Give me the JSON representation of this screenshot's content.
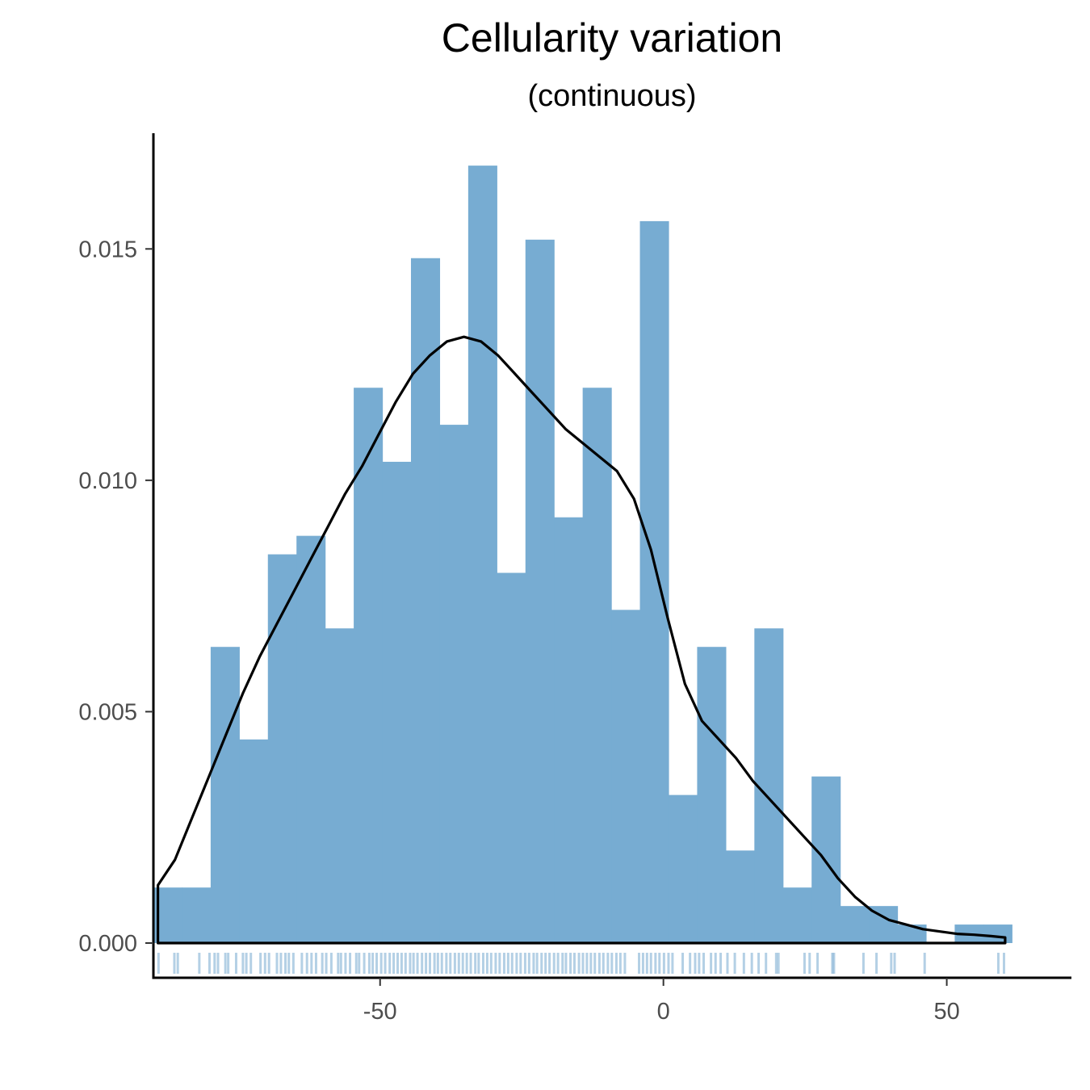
{
  "chart_data": {
    "type": "histogram",
    "title": "Cellularity variation",
    "subtitle": "(continuous)",
    "xlabel": "",
    "ylabel": "",
    "xlim": [
      -90,
      72
    ],
    "ylim": [
      -0.00075,
      0.0175
    ],
    "x_ticks": [
      -50,
      0,
      50
    ],
    "x_tick_labels": [
      "-50",
      "0",
      "50"
    ],
    "y_ticks": [
      0,
      0.005,
      0.01,
      0.015
    ],
    "y_tick_labels": [
      "0.000",
      "0.005",
      "0.010",
      "0.015"
    ],
    "grid": false,
    "bar_color": "#77acd2",
    "bin_width": 5.05,
    "bins": [
      {
        "x0": -90.0,
        "x1": -84.95,
        "density": 0.0012
      },
      {
        "x0": -84.95,
        "x1": -79.9,
        "density": 0.0012
      },
      {
        "x0": -79.9,
        "x1": -74.85,
        "density": 0.0064
      },
      {
        "x0": -74.85,
        "x1": -69.8,
        "density": 0.0044
      },
      {
        "x0": -69.8,
        "x1": -64.75,
        "density": 0.0084
      },
      {
        "x0": -64.75,
        "x1": -59.7,
        "density": 0.0088
      },
      {
        "x0": -59.7,
        "x1": -54.65,
        "density": 0.0068
      },
      {
        "x0": -54.65,
        "x1": -49.6,
        "density": 0.012
      },
      {
        "x0": -49.6,
        "x1": -44.55,
        "density": 0.0104
      },
      {
        "x0": -44.55,
        "x1": -39.5,
        "density": 0.0148
      },
      {
        "x0": -39.5,
        "x1": -34.45,
        "density": 0.0112
      },
      {
        "x0": -34.45,
        "x1": -29.4,
        "density": 0.0168
      },
      {
        "x0": -29.4,
        "x1": -24.35,
        "density": 0.008
      },
      {
        "x0": -24.35,
        "x1": -19.3,
        "density": 0.0152
      },
      {
        "x0": -19.3,
        "x1": -14.25,
        "density": 0.0092
      },
      {
        "x0": -14.25,
        "x1": -9.2,
        "density": 0.012
      },
      {
        "x0": -9.2,
        "x1": -4.15,
        "density": 0.0072
      },
      {
        "x0": -4.15,
        "x1": 0.9,
        "density": 0.0156
      },
      {
        "x0": 0.9,
        "x1": 5.95,
        "density": 0.0032
      },
      {
        "x0": 5.95,
        "x1": 11.0,
        "density": 0.0064
      },
      {
        "x0": 11.0,
        "x1": 16.05,
        "density": 0.002
      },
      {
        "x0": 16.05,
        "x1": 21.1,
        "density": 0.0068
      },
      {
        "x0": 21.1,
        "x1": 26.15,
        "density": 0.0012
      },
      {
        "x0": 26.15,
        "x1": 31.2,
        "density": 0.0036
      },
      {
        "x0": 31.2,
        "x1": 36.25,
        "density": 0.0008
      },
      {
        "x0": 36.25,
        "x1": 41.3,
        "density": 0.0008
      },
      {
        "x0": 41.3,
        "x1": 46.35,
        "density": 0.0004
      },
      {
        "x0": 46.35,
        "x1": 51.4,
        "density": 0.0
      },
      {
        "x0": 51.4,
        "x1": 56.45,
        "density": 0.0004
      },
      {
        "x0": 56.45,
        "x1": 61.5,
        "density": 0.0004
      }
    ],
    "density_curve": {
      "color": "#000000",
      "x": [
        -89.2,
        -86.2,
        -83.2,
        -80.2,
        -77.2,
        -74.2,
        -71.2,
        -68.2,
        -65.2,
        -62.2,
        -59.2,
        -56.2,
        -53.2,
        -50.2,
        -47.2,
        -44.2,
        -41.2,
        -38.2,
        -35.2,
        -32.2,
        -29.2,
        -26.2,
        -23.2,
        -20.2,
        -17.2,
        -14.2,
        -11.2,
        -8.2,
        -5.2,
        -2.2,
        0.8,
        3.8,
        6.8,
        9.8,
        12.8,
        15.8,
        18.8,
        21.8,
        24.8,
        27.8,
        30.8,
        33.8,
        36.8,
        39.8,
        42.8,
        45.8,
        48.8,
        51.8,
        54.8,
        57.8,
        60.3
      ],
      "y": [
        0.00125,
        0.0018,
        0.0027,
        0.0036,
        0.0045,
        0.0054,
        0.0062,
        0.0069,
        0.0076,
        0.0083,
        0.009,
        0.0097,
        0.0103,
        0.011,
        0.0117,
        0.0123,
        0.0127,
        0.013,
        0.0131,
        0.013,
        0.0127,
        0.0123,
        0.0119,
        0.0115,
        0.0111,
        0.0108,
        0.0105,
        0.0102,
        0.0096,
        0.0085,
        0.007,
        0.0056,
        0.0048,
        0.0044,
        0.004,
        0.0035,
        0.0031,
        0.0027,
        0.0023,
        0.0019,
        0.0014,
        0.001,
        0.0007,
        0.0005,
        0.0004,
        0.0003,
        0.00025,
        0.0002,
        0.00018,
        0.00015,
        0.00012
      ]
    },
    "rug": {
      "color": "#2878b5",
      "values": [
        -89.1,
        -86.3,
        -85.7,
        -81.9,
        -80.1,
        -79.2,
        -78.6,
        -77.3,
        -76.8,
        -75.4,
        -74.2,
        -73.6,
        -72.8,
        -71.1,
        -70.3,
        -69.6,
        -68.2,
        -67.5,
        -66.7,
        -66.1,
        -65.3,
        -63.8,
        -62.9,
        -62.1,
        -61.3,
        -60.2,
        -59.5,
        -58.6,
        -57.4,
        -56.9,
        -56.1,
        -55.3,
        -54.2,
        -53.7,
        -52.8,
        -51.9,
        -51.3,
        -50.6,
        -49.8,
        -49.1,
        -48.3,
        -47.6,
        -46.9,
        -46.2,
        -45.5,
        -44.7,
        -44.1,
        -43.4,
        -42.6,
        -41.9,
        -41.2,
        -40.4,
        -39.8,
        -39.1,
        -38.3,
        -37.6,
        -36.8,
        -36.1,
        -35.4,
        -34.7,
        -34.0,
        -33.2,
        -32.6,
        -31.8,
        -31.1,
        -30.4,
        -29.6,
        -28.9,
        -28.1,
        -27.4,
        -26.7,
        -25.9,
        -25.2,
        -24.4,
        -23.7,
        -22.9,
        -22.3,
        -21.5,
        -20.8,
        -20.1,
        -19.3,
        -18.6,
        -17.8,
        -17.2,
        -16.4,
        -15.7,
        -14.9,
        -14.2,
        -13.5,
        -12.8,
        -12.1,
        -11.3,
        -10.6,
        -9.8,
        -9.1,
        -8.3,
        -7.6,
        -6.8,
        -4.3,
        -3.6,
        -2.9,
        -2.2,
        -1.4,
        -0.7,
        0.1,
        0.9,
        1.6,
        3.4,
        4.7,
        5.6,
        6.3,
        7.1,
        8.4,
        9.2,
        10.1,
        11.3,
        12.6,
        14.2,
        15.6,
        16.8,
        18.1,
        19.9,
        20.3,
        24.9,
        25.8,
        27.2,
        29.8,
        30.1,
        35.3,
        37.6,
        40.2,
        40.8,
        46.1,
        59.1,
        60.1
      ]
    }
  }
}
